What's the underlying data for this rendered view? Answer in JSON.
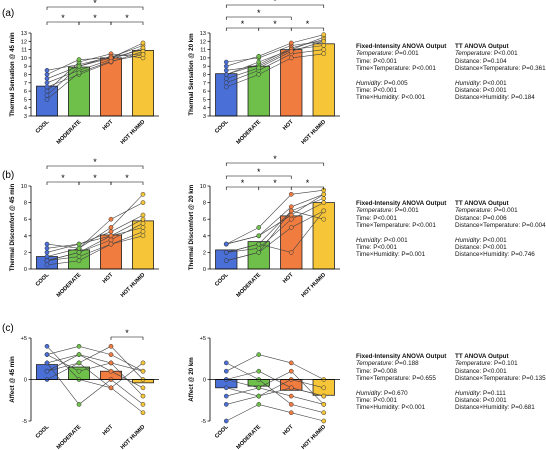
{
  "panel_labels": [
    "(a)",
    "(b)",
    "(c)"
  ],
  "colors": {
    "COOL": "#4a6fd6",
    "MODERATE": "#6fc04a",
    "HOT": "#f07c40",
    "HOT HUMID": "#f6c638",
    "line": "#444444"
  },
  "chart_data": [
    {
      "id": "a_fi",
      "type": "bar",
      "ylabel": "Thermal Sensation @ 45 min",
      "categories": [
        "COOL",
        "MODERATE",
        "HOT",
        "HOT HUMID"
      ],
      "values": [
        6.6,
        8.9,
        10.0,
        10.9
      ],
      "ylim": [
        3,
        13
      ],
      "yticks": [
        3,
        4,
        5,
        6,
        7,
        8,
        9,
        10,
        11,
        12,
        13
      ],
      "individual": [
        [
          7.5,
          9.0,
          10.0,
          11.0
        ],
        [
          8.5,
          9.2,
          10.1,
          11.5
        ],
        [
          6.0,
          9.5,
          10.5,
          10.0
        ],
        [
          7.0,
          8.5,
          9.8,
          11.2
        ],
        [
          5.5,
          9.0,
          10.2,
          10.5
        ],
        [
          6.5,
          8.0,
          9.5,
          10.8
        ],
        [
          8.0,
          9.8,
          10.0,
          11.8
        ],
        [
          5.0,
          8.2,
          9.6,
          10.4
        ]
      ],
      "sig": [
        {
          "from": 0,
          "to": 3,
          "label": "*"
        },
        {
          "from": 0,
          "to": 1,
          "label": "*"
        },
        {
          "from": 1,
          "to": 2,
          "label": "*"
        },
        {
          "from": 2,
          "to": 3,
          "label": "*"
        }
      ]
    },
    {
      "id": "a_tt",
      "type": "bar",
      "ylabel": "Thermal Sensation @ 20 km",
      "categories": [
        "COOL",
        "MODERATE",
        "HOT",
        "HOT HUMID"
      ],
      "values": [
        8.1,
        9.0,
        11.0,
        11.7
      ],
      "ylim": [
        3,
        13
      ],
      "yticks": [
        3,
        4,
        5,
        6,
        7,
        8,
        9,
        10,
        11,
        12,
        13
      ],
      "individual": [
        [
          8.5,
          9.0,
          11.0,
          12.5
        ],
        [
          9.5,
          10.0,
          11.5,
          12.0
        ],
        [
          7.0,
          8.5,
          10.5,
          11.0
        ],
        [
          8.0,
          9.2,
          11.2,
          12.2
        ],
        [
          6.5,
          8.0,
          10.0,
          10.5
        ],
        [
          9.0,
          10.2,
          11.8,
          12.8
        ],
        [
          8.0,
          9.5,
          11.0,
          11.5
        ],
        [
          7.5,
          8.8,
          10.8,
          12.0
        ]
      ],
      "sig": [
        {
          "from": 0,
          "to": 3,
          "label": "*"
        },
        {
          "from": 0,
          "to": 2,
          "label": "*"
        },
        {
          "from": 0,
          "to": 1,
          "label": "*"
        },
        {
          "from": 1,
          "to": 2,
          "label": "*"
        },
        {
          "from": 2,
          "to": 3,
          "label": "*"
        }
      ]
    },
    {
      "id": "b_fi",
      "type": "bar",
      "ylabel": "Thermal Discomfort @ 45 min",
      "categories": [
        "COOL",
        "MODERATE",
        "HOT",
        "HOT HUMID"
      ],
      "values": [
        1.5,
        2.3,
        4.1,
        5.8
      ],
      "ylim": [
        0,
        10
      ],
      "yticks": [
        0,
        2,
        4,
        6,
        8,
        10
      ],
      "individual": [
        [
          2.0,
          3.0,
          4.0,
          6.0
        ],
        [
          1.0,
          2.0,
          4.0,
          5.0
        ],
        [
          3.0,
          2.5,
          5.0,
          9.0
        ],
        [
          1.0,
          1.5,
          3.0,
          4.5
        ],
        [
          2.5,
          3.0,
          4.5,
          6.5
        ],
        [
          1.0,
          2.0,
          3.5,
          5.5
        ],
        [
          1.5,
          2.5,
          6.0,
          8.0
        ],
        [
          0.5,
          1.0,
          3.0,
          4.0
        ]
      ],
      "sig": [
        {
          "from": 0,
          "to": 3,
          "label": "*"
        },
        {
          "from": 0,
          "to": 1,
          "label": "*"
        },
        {
          "from": 1,
          "to": 2,
          "label": "*"
        },
        {
          "from": 2,
          "to": 3,
          "label": "*"
        }
      ]
    },
    {
      "id": "b_tt",
      "type": "bar",
      "ylabel": "Thermal Discomfort @ 20 km",
      "categories": [
        "COOL",
        "MODERATE",
        "HOT",
        "HOT HUMID"
      ],
      "values": [
        2.3,
        3.3,
        6.4,
        8.0
      ],
      "ylim": [
        0,
        10
      ],
      "yticks": [
        0,
        2,
        4,
        6,
        8,
        10
      ],
      "individual": [
        [
          3.0,
          5.0,
          9.0,
          9.5
        ],
        [
          2.0,
          3.0,
          7.0,
          8.5
        ],
        [
          1.0,
          2.0,
          5.0,
          7.0
        ],
        [
          3.0,
          4.0,
          6.5,
          9.0
        ],
        [
          2.0,
          2.5,
          6.0,
          8.0
        ],
        [
          1.0,
          2.0,
          7.0,
          6.0
        ],
        [
          3.0,
          4.0,
          7.5,
          9.0
        ],
        [
          2.0,
          3.0,
          2.0,
          7.0
        ]
      ],
      "sig": [
        {
          "from": 0,
          "to": 3,
          "label": "*"
        },
        {
          "from": 0,
          "to": 2,
          "label": "*"
        },
        {
          "from": 0,
          "to": 1,
          "label": "*"
        },
        {
          "from": 1,
          "to": 2,
          "label": "*"
        },
        {
          "from": 2,
          "to": 3,
          "label": "*"
        }
      ]
    },
    {
      "id": "c_fi",
      "type": "bar",
      "ylabel": "Affect @ 45 min",
      "categories": [
        "COOL",
        "MODERATE",
        "HOT",
        "HOT HUMID"
      ],
      "values": [
        1.8,
        1.5,
        1.0,
        -0.4
      ],
      "ylim": [
        -5,
        5
      ],
      "yticks": [
        -5,
        0,
        5
      ],
      "yticklabels": [
        "-5",
        "0",
        "+5"
      ],
      "individual": [
        [
          3.0,
          4.0,
          3.0,
          1.0
        ],
        [
          2.0,
          3.0,
          1.0,
          -1.0
        ],
        [
          1.0,
          2.0,
          4.0,
          0.0
        ],
        [
          3.0,
          1.0,
          2.0,
          -2.0
        ],
        [
          2.0,
          -3.0,
          0.0,
          -3.0
        ],
        [
          4.0,
          0.0,
          -1.0,
          -4.0
        ],
        [
          1.0,
          3.0,
          2.0,
          1.0
        ],
        [
          0.0,
          2.0,
          -1.0,
          2.0
        ]
      ],
      "sig": [
        {
          "from": 2,
          "to": 3,
          "label": "*"
        }
      ]
    },
    {
      "id": "c_tt",
      "type": "bar",
      "ylabel": "Affect @ 20 km",
      "categories": [
        "COOL",
        "MODERATE",
        "HOT",
        "HOT HUMID"
      ],
      "values": [
        -1.0,
        -0.8,
        -1.3,
        -1.9
      ],
      "ylim": [
        -5,
        5
      ],
      "yticks": [
        -5,
        0,
        5
      ],
      "yticklabels": [
        "-5",
        "0",
        "+5"
      ],
      "individual": [
        [
          0.0,
          1.0,
          -1.0,
          -2.0
        ],
        [
          -1.0,
          -2.0,
          0.0,
          -1.0
        ],
        [
          2.0,
          0.0,
          -3.0,
          -4.0
        ],
        [
          -2.0,
          -1.0,
          1.0,
          -3.0
        ],
        [
          -5.0,
          -3.0,
          -4.0,
          -5.0
        ],
        [
          1.0,
          3.0,
          2.0,
          0.0
        ],
        [
          -3.0,
          -2.0,
          -1.0,
          -2.0
        ],
        [
          0.0,
          -1.0,
          -2.0,
          -3.0
        ]
      ],
      "sig": []
    }
  ],
  "stats": {
    "a": {
      "fi": {
        "title": "Fixed-Intensity ANOVA Output",
        "block1": [
          {
            "k": "Temperature",
            "v": ": P=0.001"
          },
          {
            "k": "Time",
            "v": ": P<0.001"
          },
          {
            "k": "Time×Temperature",
            "v": ": P<0.001"
          }
        ],
        "block2": [
          {
            "k": "Humidity",
            "v": ": P=0.005"
          },
          {
            "k": "Time",
            "v": ": P<0.001"
          },
          {
            "k": "Time×Humidity",
            "v": ": P<0.001"
          }
        ]
      },
      "tt": {
        "title": "TT ANOVA Output",
        "block1": [
          {
            "k": "Temperature",
            "v": ": P<0.001"
          },
          {
            "k": "Distance",
            "v": ": P=0.104"
          },
          {
            "k": "Distance×Temperature",
            "v": ": P=0.361"
          }
        ],
        "block2": [
          {
            "k": "Humidity",
            "v": ": P<0.001"
          },
          {
            "k": "Distance",
            "v": ": P<0.001"
          },
          {
            "k": "Distance×Humidity",
            "v": ": P=0.184"
          }
        ]
      }
    },
    "b": {
      "fi": {
        "title": "Fixed-Intensity ANOVA Output",
        "block1": [
          {
            "k": "Temperature",
            "v": ": P=0.001"
          },
          {
            "k": "Time",
            "v": ": P<0.001"
          },
          {
            "k": "Time×Temperature",
            "v": ": P<0.001"
          }
        ],
        "block2": [
          {
            "k": "Humidity",
            "v": ": P<0.001"
          },
          {
            "k": "Time",
            "v": ": P<0.001"
          },
          {
            "k": "Time×Humidity",
            "v": ": P=0.001"
          }
        ]
      },
      "tt": {
        "title": "TT ANOVA Output",
        "block1": [
          {
            "k": "Temperature",
            "v": ": P=0.001"
          },
          {
            "k": "Distance",
            "v": ": P=0.006"
          },
          {
            "k": "Distance×Temperature",
            "v": ": P=0.004"
          }
        ],
        "block2": [
          {
            "k": "Humidity",
            "v": ": P<0.001"
          },
          {
            "k": "Distance",
            "v": ": P<0.001"
          },
          {
            "k": "Distance×Humidity",
            "v": ": P=0.746"
          }
        ]
      }
    },
    "c": {
      "fi": {
        "title": "Fixed-Intensity ANOVA Output",
        "block1": [
          {
            "k": "Temperature",
            "v": ": P=0.188"
          },
          {
            "k": "Time",
            "v": ": P=0.008"
          },
          {
            "k": "Time×Temperature",
            "v": ": P=0.655"
          }
        ],
        "block2": [
          {
            "k": "Humidity",
            "v": ": P=0.670"
          },
          {
            "k": "Time",
            "v": ": P<0.001"
          },
          {
            "k": "Time×Humidity",
            "v": ": P<0.001"
          }
        ]
      },
      "tt": {
        "title": "TT ANOVA Output",
        "block1": [
          {
            "k": "Temperature",
            "v": ": P=0.101"
          },
          {
            "k": "Distance",
            "v": ": P<0.001"
          },
          {
            "k": "Distance×Temperature",
            "v": ": P=0.135"
          }
        ],
        "block2": [
          {
            "k": "Humidity",
            "v": ": P=0.111"
          },
          {
            "k": "Distance",
            "v": ": P<0.001"
          },
          {
            "k": "Distance×Humidity",
            "v": ": P=0.681"
          }
        ]
      }
    }
  }
}
